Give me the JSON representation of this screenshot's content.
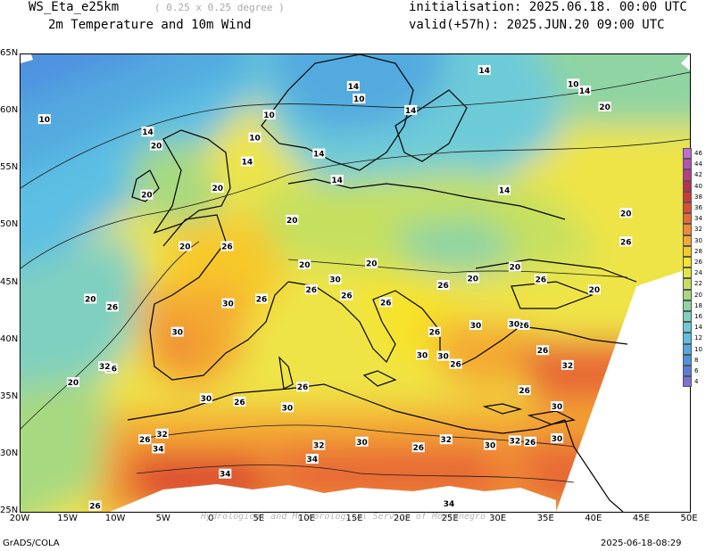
{
  "header": {
    "model_name": "WS_Eta_e25km",
    "resolution": "( 0.25 x 0.25 degree )",
    "subtitle": "2m Temperature and 10m Wind",
    "initialisation": "initialisation: 2025.06.18. 00:00 UTC",
    "valid": "valid(+57h): 2025.JUN.20 09:00 UTC"
  },
  "axes": {
    "lat_labels": [
      "65N",
      "60N",
      "55N",
      "50N",
      "45N",
      "40N",
      "35N",
      "30N",
      "25N"
    ],
    "lon_labels": [
      "20W",
      "15W",
      "10W",
      "5W",
      "0",
      "5E",
      "10E",
      "15E",
      "20E",
      "25E",
      "30E",
      "35E",
      "40E",
      "45E",
      "50E"
    ],
    "lat_range": [
      25,
      65
    ],
    "lon_range": [
      -20,
      50
    ]
  },
  "legend": {
    "levels": [
      "4",
      "6",
      "8",
      "10",
      "12",
      "14",
      "16",
      "18",
      "20",
      "22",
      "24",
      "26",
      "28",
      "30",
      "32",
      "34",
      "36",
      "38",
      "40",
      "42",
      "44",
      "46"
    ],
    "colors": [
      "#7b6fd8",
      "#5a7ddc",
      "#4f93e0",
      "#52aadf",
      "#5dbfe3",
      "#6dcbd8",
      "#7fd0c0",
      "#8fd4a2",
      "#a7d980",
      "#c5e05e",
      "#e4e640",
      "#f6e32a",
      "#f7c92b",
      "#f4aa32",
      "#ef8a36",
      "#e86a36",
      "#dd4e33",
      "#cc3a33",
      "#b92f52",
      "#b83d86",
      "#b64fb6",
      "#c06bd6"
    ]
  },
  "contour_labels": [
    {
      "text": "10",
      "lon": -17.5,
      "lat": 59.3
    },
    {
      "text": "10",
      "lon": 6,
      "lat": 59.7
    },
    {
      "text": "10",
      "lon": 4.5,
      "lat": 57.7
    },
    {
      "text": "10",
      "lon": 15.4,
      "lat": 61.1
    },
    {
      "text": "10",
      "lon": 37.8,
      "lat": 62.4
    },
    {
      "text": "14",
      "lon": 14.8,
      "lat": 62.2
    },
    {
      "text": "14",
      "lon": 28.5,
      "lat": 63.6
    },
    {
      "text": "14",
      "lon": 20.8,
      "lat": 60.1
    },
    {
      "text": "14",
      "lon": 39,
      "lat": 61.8
    },
    {
      "text": "14",
      "lon": -6.7,
      "lat": 58.2
    },
    {
      "text": "14",
      "lon": 3.7,
      "lat": 55.6
    },
    {
      "text": "14",
      "lon": 11.2,
      "lat": 56.3
    },
    {
      "text": "14",
      "lon": 13.1,
      "lat": 54
    },
    {
      "text": "14",
      "lon": 30.6,
      "lat": 53.1
    },
    {
      "text": "20",
      "lon": -5.8,
      "lat": 57
    },
    {
      "text": "20",
      "lon": 0.6,
      "lat": 53.3
    },
    {
      "text": "20",
      "lon": -6.8,
      "lat": 52.7
    },
    {
      "text": "20",
      "lon": 41.1,
      "lat": 60.4
    },
    {
      "text": "20",
      "lon": 8.4,
      "lat": 50.5
    },
    {
      "text": "20",
      "lon": 43.3,
      "lat": 51.1
    },
    {
      "text": "20",
      "lon": -2.8,
      "lat": 48.2
    },
    {
      "text": "20",
      "lon": 9.7,
      "lat": 46.6
    },
    {
      "text": "20",
      "lon": 16.7,
      "lat": 46.7
    },
    {
      "text": "20",
      "lon": 27.3,
      "lat": 45.4
    },
    {
      "text": "20",
      "lon": 31.7,
      "lat": 46.4
    },
    {
      "text": "20",
      "lon": 40,
      "lat": 44.4
    },
    {
      "text": "20",
      "lon": -12.7,
      "lat": 43.6
    },
    {
      "text": "20",
      "lon": -14.5,
      "lat": 36.3
    },
    {
      "text": "26",
      "lon": 1.6,
      "lat": 48.2
    },
    {
      "text": "26",
      "lon": 43.3,
      "lat": 48.6
    },
    {
      "text": "26",
      "lon": 24.2,
      "lat": 44.8
    },
    {
      "text": "26",
      "lon": 34.4,
      "lat": 45.3
    },
    {
      "text": "26",
      "lon": 10.4,
      "lat": 44.4
    },
    {
      "text": "26",
      "lon": 14.1,
      "lat": 43.9
    },
    {
      "text": "26",
      "lon": 5.2,
      "lat": 43.6
    },
    {
      "text": "26",
      "lon": -10.4,
      "lat": 42.9
    },
    {
      "text": "26",
      "lon": 18.2,
      "lat": 43.3
    },
    {
      "text": "26",
      "lon": 23.3,
      "lat": 40.7
    },
    {
      "text": "26",
      "lon": 32.6,
      "lat": 41.3
    },
    {
      "text": "26",
      "lon": 25.5,
      "lat": 37.9
    },
    {
      "text": "26",
      "lon": 34.6,
      "lat": 39.1
    },
    {
      "text": "26",
      "lon": 9.5,
      "lat": 35.9
    },
    {
      "text": "26",
      "lon": 2.9,
      "lat": 34.6
    },
    {
      "text": "26",
      "lon": -10.5,
      "lat": 37.5
    },
    {
      "text": "26",
      "lon": -7,
      "lat": 31.3
    },
    {
      "text": "26",
      "lon": 21.6,
      "lat": 30.6
    },
    {
      "text": "26",
      "lon": 33.3,
      "lat": 31.1
    },
    {
      "text": "26",
      "lon": 32.7,
      "lat": 35.6
    },
    {
      "text": "26",
      "lon": -12.2,
      "lat": 25.5
    },
    {
      "text": "30",
      "lon": 12.9,
      "lat": 45.3
    },
    {
      "text": "30",
      "lon": 1.7,
      "lat": 43.2
    },
    {
      "text": "30",
      "lon": -3.6,
      "lat": 40.7
    },
    {
      "text": "30",
      "lon": 27.6,
      "lat": 41.3
    },
    {
      "text": "30",
      "lon": 31.6,
      "lat": 41.4
    },
    {
      "text": "30",
      "lon": 22,
      "lat": 38.7
    },
    {
      "text": "30",
      "lon": 24.2,
      "lat": 38.6
    },
    {
      "text": "30",
      "lon": -0.6,
      "lat": 34.9
    },
    {
      "text": "30",
      "lon": 7.9,
      "lat": 34.1
    },
    {
      "text": "30",
      "lon": 15.7,
      "lat": 31.1
    },
    {
      "text": "30",
      "lon": 29.1,
      "lat": 30.8
    },
    {
      "text": "30",
      "lon": 36.1,
      "lat": 34.2
    },
    {
      "text": "30",
      "lon": 36.1,
      "lat": 31.4
    },
    {
      "text": "32",
      "lon": 37.2,
      "lat": 37.8
    },
    {
      "text": "32",
      "lon": -11.2,
      "lat": 37.7
    },
    {
      "text": "32",
      "lon": -5.2,
      "lat": 31.8
    },
    {
      "text": "32",
      "lon": 11.2,
      "lat": 30.8
    },
    {
      "text": "32",
      "lon": 24.5,
      "lat": 31.3
    },
    {
      "text": "32",
      "lon": 31.7,
      "lat": 31.2
    },
    {
      "text": "34",
      "lon": -5.6,
      "lat": 30.5
    },
    {
      "text": "34",
      "lon": 10.5,
      "lat": 29.6
    },
    {
      "text": "34",
      "lon": 1.4,
      "lat": 28.3
    },
    {
      "text": "34",
      "lon": 24.8,
      "lat": 25.7
    }
  ],
  "watermark": "Hydrological and Meteorological Service of Montenegro",
  "footer": {
    "left": "GrADS/COLA",
    "right": "2025-06-18-08:29"
  }
}
